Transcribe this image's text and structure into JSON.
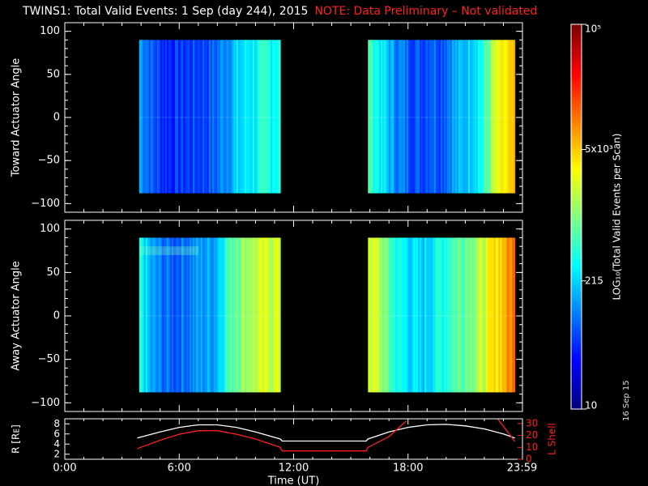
{
  "title": "TWINS1: Total Valid Events:  1 Sep (day 244), 2015",
  "note": "NOTE: Data Preliminary – Not validated",
  "date_stamp": "16 Sep 15",
  "colors": {
    "background": "#000000",
    "axes": "#ffffff",
    "note": "#ff2020",
    "lshell": "#ff2020",
    "radius": "#ffffff"
  },
  "chart_data": [
    {
      "type": "heatmap",
      "panel": "toward",
      "ylabel": "Toward Actuator Angle",
      "ylim": [
        -110,
        110
      ],
      "yticks": [
        "100",
        "50",
        "0",
        "−50",
        "−100"
      ],
      "ytick_values": [
        100,
        50,
        0,
        -50,
        -100
      ],
      "xlim": [
        0,
        24
      ],
      "data_blocks": [
        {
          "x_start": 3.9,
          "x_end": 11.3,
          "y_min": -88,
          "y_max": 90,
          "level_profile": [
            0.3,
            0.22,
            0.18,
            0.17,
            0.18,
            0.19,
            0.2,
            0.22,
            0.28,
            0.32,
            0.36,
            0.38,
            0.4,
            0.4
          ]
        },
        {
          "x_start": 15.9,
          "x_end": 23.6,
          "y_min": -88,
          "y_max": 90,
          "level_profile": [
            0.45,
            0.38,
            0.3,
            0.25,
            0.22,
            0.2,
            0.24,
            0.22,
            0.28,
            0.3,
            0.36,
            0.4,
            0.55,
            0.62,
            0.66
          ]
        }
      ]
    },
    {
      "type": "heatmap",
      "panel": "away",
      "ylabel": "Away Actuator Angle",
      "ylim": [
        -110,
        110
      ],
      "yticks": [
        "100",
        "50",
        "0",
        "−50",
        "−100"
      ],
      "ytick_values": [
        100,
        50,
        0,
        -50,
        -100
      ],
      "xlim": [
        0,
        24
      ],
      "data_blocks": [
        {
          "x_start": 3.9,
          "x_end": 11.3,
          "y_min": -88,
          "y_max": 90,
          "level_profile": [
            0.4,
            0.28,
            0.24,
            0.22,
            0.24,
            0.26,
            0.28,
            0.3,
            0.42,
            0.5,
            0.54,
            0.56,
            0.58,
            0.58
          ]
        },
        {
          "x_start": 15.9,
          "x_end": 23.6,
          "y_min": -88,
          "y_max": 90,
          "level_profile": [
            0.6,
            0.55,
            0.45,
            0.38,
            0.35,
            0.32,
            0.36,
            0.4,
            0.45,
            0.48,
            0.52,
            0.56,
            0.64,
            0.7,
            0.76
          ]
        }
      ]
    },
    {
      "type": "line",
      "panel": "orbit",
      "ylabel": "R [Rᴇ]",
      "y2label": "L Shell",
      "xlabel": "Time (UT)",
      "xlim": [
        0,
        24
      ],
      "xticks": [
        "0:00",
        "6:00",
        "12:00",
        "18:00",
        "23:59"
      ],
      "xtick_values": [
        0,
        6,
        12,
        18,
        23.98
      ],
      "ylim": [
        1,
        9
      ],
      "yticks": [
        "8",
        "6",
        "4",
        "2"
      ],
      "ytick_values": [
        8,
        6,
        4,
        2
      ],
      "y2lim": [
        0,
        34
      ],
      "y2ticks": [
        "30",
        "20",
        "10",
        "0"
      ],
      "y2tick_values": [
        30,
        20,
        10,
        0
      ],
      "series": [
        {
          "name": "R",
          "axis": "left",
          "x": [
            3.8,
            5.0,
            6.0,
            7.0,
            8.0,
            9.0,
            10.0,
            11.3,
            11.4,
            15.8,
            15.9,
            17.0,
            18.0,
            19.0,
            20.0,
            21.0,
            22.0,
            23.0,
            23.6
          ],
          "y": [
            5.2,
            6.4,
            7.3,
            7.8,
            7.8,
            7.3,
            6.4,
            5.0,
            4.6,
            4.6,
            5.0,
            6.4,
            7.3,
            7.8,
            7.9,
            7.6,
            7.0,
            6.0,
            5.2
          ]
        },
        {
          "name": "L Shell",
          "axis": "right",
          "x": [
            3.8,
            5.0,
            6.0,
            7.0,
            8.0,
            9.0,
            10.0,
            11.3,
            11.4,
            15.8,
            15.9,
            17.0,
            17.9,
            null,
            22.7,
            23.6
          ],
          "y": [
            9,
            16,
            21,
            24,
            24,
            21,
            17,
            10,
            7,
            7,
            10,
            19,
            32,
            null,
            34,
            15
          ]
        }
      ]
    }
  ],
  "colorbar": {
    "label": "LOG₁₀(Total Valid Events per Scan)",
    "scale": "log",
    "range": [
      10,
      100000
    ],
    "tick_labels": [
      "10⁵",
      "5x10³",
      "215",
      "10"
    ],
    "tick_values": [
      100000,
      5000,
      215,
      10
    ]
  }
}
